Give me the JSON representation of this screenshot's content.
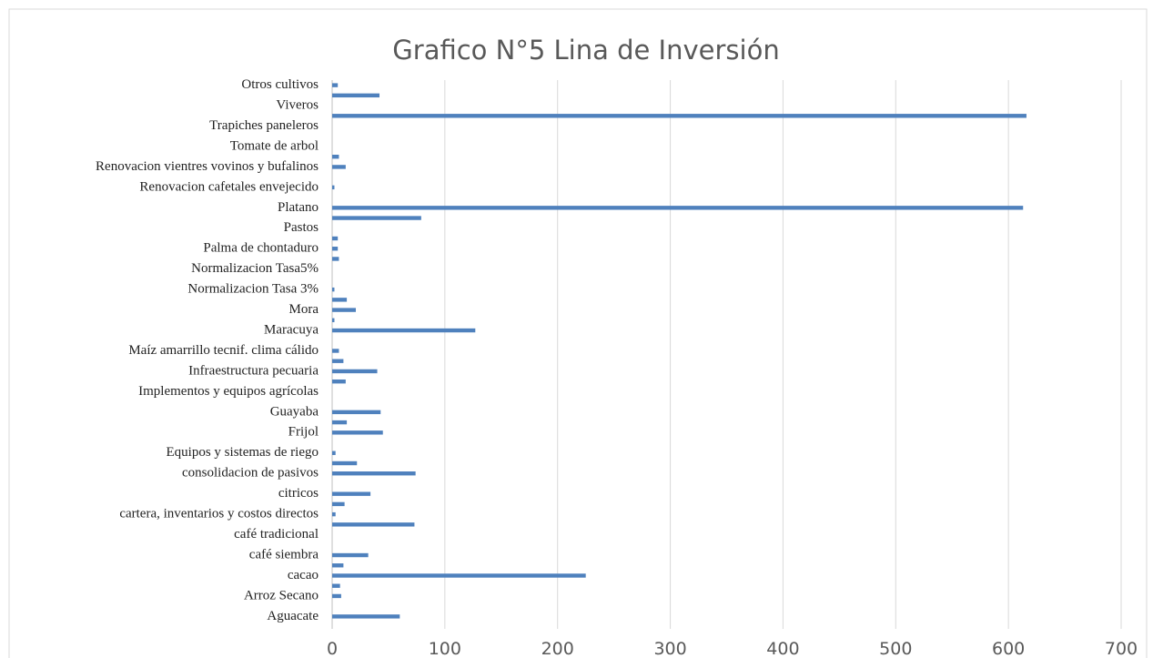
{
  "chart_data": {
    "type": "barh",
    "title": "Grafico N°5 Lina de Inversión",
    "categories": [
      "Aguacate",
      null,
      "Arroz Secano",
      null,
      "cacao",
      null,
      "café siembra",
      null,
      "café tradicional",
      null,
      "cartera, inventarios y costos directos",
      null,
      "citricos",
      null,
      "consolidacion de pasivos",
      null,
      "Equipos y sistemas de riego",
      null,
      "Frijol",
      null,
      "Guayaba",
      null,
      "Implementos y equipos agrícolas",
      null,
      "Infraestructura pecuaria",
      null,
      "Maíz amarrillo tecnif. clima cálido",
      null,
      "Maracuya",
      null,
      "Mora",
      null,
      "Normalizacion Tasa 3%",
      null,
      "Normalizacion Tasa5%",
      null,
      "Palma de chontaduro",
      null,
      "Pastos",
      null,
      "Platano",
      null,
      "Renovacion cafetales envejecido",
      null,
      "Renovacion vientres vovinos y bufalinos",
      null,
      "Tomate de arbol",
      null,
      "Trapiches paneleros",
      null,
      "Viveros",
      null,
      "Otros cultivos"
    ],
    "values": [
      60,
      0,
      8,
      7,
      225,
      10,
      32,
      0,
      0,
      73,
      3,
      11,
      34,
      0,
      74,
      22,
      3,
      0,
      45,
      13,
      43,
      0,
      0,
      12,
      40,
      10,
      6,
      0,
      127,
      2,
      21,
      13,
      2,
      0,
      0,
      6,
      5,
      5,
      0,
      79,
      613,
      0,
      2,
      0,
      12,
      6,
      0,
      0,
      0,
      616,
      0,
      42,
      5
    ],
    "color": "#4f81bd",
    "xlim": [
      0,
      700
    ],
    "xticks": [
      0,
      100,
      200,
      300,
      400,
      500,
      600,
      700
    ],
    "grid": true
  }
}
